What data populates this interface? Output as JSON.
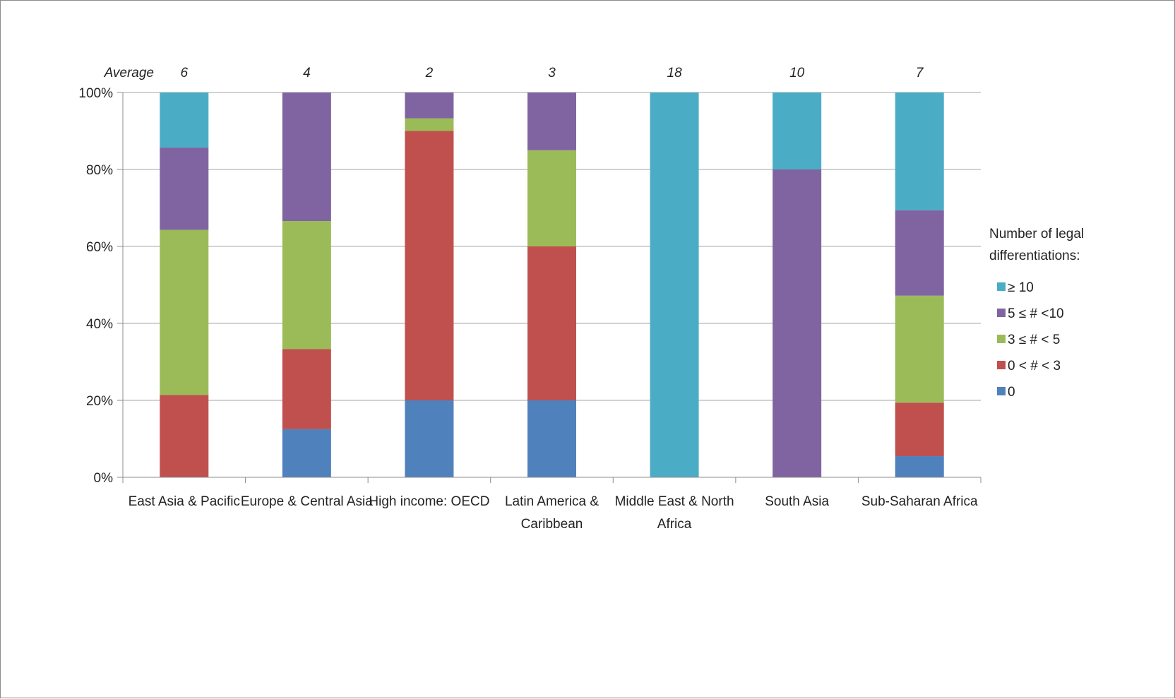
{
  "chart_data": {
    "type": "bar",
    "stacked": true,
    "normalized": true,
    "categories": [
      "East Asia & Pacific",
      "Europe & Central Asia",
      "High income: OECD",
      "Latin America & Caribbean",
      "Middle East & North Africa",
      "South Asia",
      "Sub-Saharan Africa"
    ],
    "category_label_lines": [
      [
        "East Asia & Pacific"
      ],
      [
        "Europe & Central Asia"
      ],
      [
        "High income: OECD"
      ],
      [
        "Latin America &",
        "Caribbean"
      ],
      [
        "Middle East & North",
        "Africa"
      ],
      [
        "South Asia"
      ],
      [
        "Sub-Saharan Africa"
      ]
    ],
    "average_label": "Average",
    "averages": [
      "6",
      "4",
      "2",
      "3",
      "18",
      "10",
      "7"
    ],
    "series": [
      {
        "name": "0",
        "color": "#4f81bd",
        "values": [
          0,
          12.5,
          20,
          20,
          0,
          0,
          5.5
        ]
      },
      {
        "name": "0 < # < 3",
        "color": "#c0504d",
        "values": [
          21.4,
          20.8,
          70,
          40,
          0,
          0,
          13.9
        ]
      },
      {
        "name": "3 ≤  # < 5",
        "color": "#9bbb59",
        "values": [
          42.9,
          33.3,
          3.3,
          25,
          0,
          0,
          27.8
        ]
      },
      {
        "name": "5  ≤  # <10",
        "color": "#8064a2",
        "values": [
          21.4,
          33.4,
          6.7,
          15,
          0,
          80,
          22.2
        ]
      },
      {
        "name": "≥ 10",
        "color": "#4bacc6",
        "values": [
          14.3,
          0,
          0,
          0,
          100,
          20,
          30.6
        ]
      }
    ],
    "legend_order": [
      "≥ 10",
      "5  ≤  # <10",
      "3 ≤  # < 5",
      "0 < # < 3",
      "0"
    ],
    "legend_title_lines": [
      "Number of legal",
      "differentiations:"
    ],
    "legend_position": "right",
    "ylim": [
      0,
      100
    ],
    "yticks": [
      0,
      20,
      40,
      60,
      80,
      100
    ],
    "ytick_labels": [
      "0%",
      "20%",
      "40%",
      "60%",
      "80%",
      "100%"
    ],
    "grid": true,
    "title": "",
    "xlabel": "",
    "ylabel": ""
  }
}
